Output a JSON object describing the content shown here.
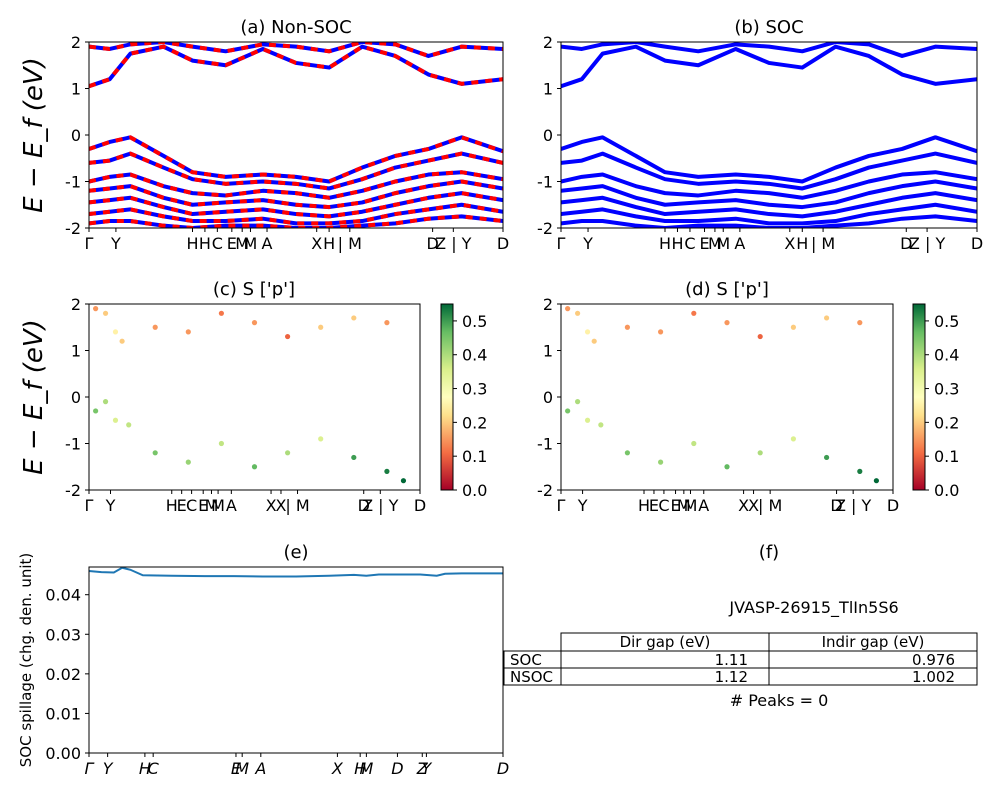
{
  "figure": {
    "material_id": "JVASP-26915_TlIn5S6",
    "colors": {
      "band_nonsoc_primary": "#0000ff",
      "band_nonsoc_dash": "#ff0000",
      "band_soc": "#0000ff",
      "spillage_line": "#1f77b4",
      "colormap_low": "#a50026",
      "colormap_mid": "#ffffbf",
      "colormap_high": "#006837"
    }
  },
  "chart_data": [
    {
      "id": "a",
      "type": "line",
      "title": "(a) Non-SOC",
      "ylabel": "E − E_f (eV)",
      "ylim": [
        -2,
        2
      ],
      "yticks": [
        -2,
        -1,
        0,
        1,
        2
      ],
      "xticklabels": [
        "Γ",
        "Y",
        "H",
        "H",
        "C",
        "E",
        "M",
        "M",
        "A",
        "X",
        "H",
        "| M",
        "D",
        "Z | Y",
        "D"
      ],
      "style": "blue line with red dashes",
      "series": [
        {
          "x": [
            0,
            0.05,
            0.1,
            0.18,
            0.25,
            0.33,
            0.42,
            0.5,
            0.58,
            0.66,
            0.74,
            0.82,
            0.9,
            1.0
          ],
          "values": [
            1.05,
            1.2,
            1.75,
            1.9,
            1.6,
            1.5,
            1.85,
            1.55,
            1.45,
            1.9,
            1.7,
            1.3,
            1.1,
            1.2
          ]
        },
        {
          "x": [
            0,
            0.05,
            0.1,
            0.18,
            0.25,
            0.33,
            0.42,
            0.5,
            0.58,
            0.66,
            0.74,
            0.82,
            0.9,
            1.0
          ],
          "values": [
            1.9,
            1.85,
            1.95,
            2.0,
            1.9,
            1.8,
            1.95,
            1.9,
            1.8,
            2.0,
            1.95,
            1.7,
            1.9,
            1.85
          ]
        },
        {
          "x": [
            0,
            0.05,
            0.1,
            0.18,
            0.25,
            0.33,
            0.42,
            0.5,
            0.58,
            0.66,
            0.74,
            0.82,
            0.9,
            1.0
          ],
          "values": [
            -0.3,
            -0.15,
            -0.05,
            -0.45,
            -0.8,
            -0.9,
            -0.85,
            -0.9,
            -1.0,
            -0.7,
            -0.45,
            -0.3,
            -0.05,
            -0.35
          ]
        },
        {
          "x": [
            0,
            0.05,
            0.1,
            0.18,
            0.25,
            0.33,
            0.42,
            0.5,
            0.58,
            0.66,
            0.74,
            0.82,
            0.9,
            1.0
          ],
          "values": [
            -0.6,
            -0.55,
            -0.4,
            -0.7,
            -0.95,
            -1.05,
            -1.0,
            -1.05,
            -1.15,
            -0.95,
            -0.7,
            -0.55,
            -0.4,
            -0.6
          ]
        },
        {
          "x": [
            0,
            0.05,
            0.1,
            0.18,
            0.25,
            0.33,
            0.42,
            0.5,
            0.58,
            0.66,
            0.74,
            0.82,
            0.9,
            1.0
          ],
          "values": [
            -1.0,
            -0.9,
            -0.85,
            -1.1,
            -1.25,
            -1.3,
            -1.2,
            -1.25,
            -1.35,
            -1.2,
            -1.0,
            -0.85,
            -0.8,
            -0.95
          ]
        },
        {
          "x": [
            0,
            0.05,
            0.1,
            0.18,
            0.25,
            0.33,
            0.42,
            0.5,
            0.58,
            0.66,
            0.74,
            0.82,
            0.9,
            1.0
          ],
          "values": [
            -1.2,
            -1.15,
            -1.1,
            -1.35,
            -1.5,
            -1.45,
            -1.4,
            -1.5,
            -1.55,
            -1.45,
            -1.25,
            -1.1,
            -1.0,
            -1.15
          ]
        },
        {
          "x": [
            0,
            0.05,
            0.1,
            0.18,
            0.25,
            0.33,
            0.42,
            0.5,
            0.58,
            0.66,
            0.74,
            0.82,
            0.9,
            1.0
          ],
          "values": [
            -1.45,
            -1.4,
            -1.35,
            -1.55,
            -1.7,
            -1.65,
            -1.6,
            -1.7,
            -1.75,
            -1.65,
            -1.5,
            -1.35,
            -1.25,
            -1.4
          ]
        },
        {
          "x": [
            0,
            0.05,
            0.1,
            0.18,
            0.25,
            0.33,
            0.42,
            0.5,
            0.58,
            0.66,
            0.74,
            0.82,
            0.9,
            1.0
          ],
          "values": [
            -1.7,
            -1.65,
            -1.6,
            -1.75,
            -1.85,
            -1.85,
            -1.8,
            -1.9,
            -1.9,
            -1.85,
            -1.7,
            -1.6,
            -1.5,
            -1.65
          ]
        },
        {
          "x": [
            0,
            0.05,
            0.1,
            0.18,
            0.25,
            0.33,
            0.42,
            0.5,
            0.58,
            0.66,
            0.74,
            0.82,
            0.9,
            1.0
          ],
          "values": [
            -1.9,
            -1.85,
            -1.85,
            -1.95,
            -2.0,
            -1.95,
            -1.95,
            -2.0,
            -2.0,
            -1.95,
            -1.9,
            -1.8,
            -1.75,
            -1.85
          ]
        }
      ]
    },
    {
      "id": "b",
      "type": "line",
      "title": "(b) SOC",
      "ylim": [
        -2,
        2
      ],
      "yticks": [
        -2,
        -1,
        0,
        1,
        2
      ],
      "xticklabels": [
        "Γ",
        "Y",
        "H",
        "H",
        "C",
        "E",
        "M",
        "M",
        "A",
        "X",
        "H",
        "| M",
        "D",
        "Z | Y",
        "D"
      ],
      "style": "solid blue",
      "series": [
        {
          "x": [
            0,
            0.05,
            0.1,
            0.18,
            0.25,
            0.33,
            0.42,
            0.5,
            0.58,
            0.66,
            0.74,
            0.82,
            0.9,
            1.0
          ],
          "values": [
            1.05,
            1.2,
            1.75,
            1.9,
            1.6,
            1.5,
            1.85,
            1.55,
            1.45,
            1.9,
            1.7,
            1.3,
            1.1,
            1.2
          ]
        },
        {
          "x": [
            0,
            0.05,
            0.1,
            0.18,
            0.25,
            0.33,
            0.42,
            0.5,
            0.58,
            0.66,
            0.74,
            0.82,
            0.9,
            1.0
          ],
          "values": [
            1.9,
            1.85,
            1.95,
            2.0,
            1.9,
            1.8,
            1.95,
            1.9,
            1.8,
            2.0,
            1.95,
            1.7,
            1.9,
            1.85
          ]
        },
        {
          "x": [
            0,
            0.05,
            0.1,
            0.18,
            0.25,
            0.33,
            0.42,
            0.5,
            0.58,
            0.66,
            0.74,
            0.82,
            0.9,
            1.0
          ],
          "values": [
            -0.3,
            -0.15,
            -0.05,
            -0.45,
            -0.8,
            -0.9,
            -0.85,
            -0.9,
            -1.0,
            -0.7,
            -0.45,
            -0.3,
            -0.05,
            -0.35
          ]
        },
        {
          "x": [
            0,
            0.05,
            0.1,
            0.18,
            0.25,
            0.33,
            0.42,
            0.5,
            0.58,
            0.66,
            0.74,
            0.82,
            0.9,
            1.0
          ],
          "values": [
            -0.6,
            -0.55,
            -0.4,
            -0.7,
            -0.95,
            -1.05,
            -1.0,
            -1.05,
            -1.15,
            -0.95,
            -0.7,
            -0.55,
            -0.4,
            -0.6
          ]
        },
        {
          "x": [
            0,
            0.05,
            0.1,
            0.18,
            0.25,
            0.33,
            0.42,
            0.5,
            0.58,
            0.66,
            0.74,
            0.82,
            0.9,
            1.0
          ],
          "values": [
            -1.0,
            -0.9,
            -0.85,
            -1.1,
            -1.25,
            -1.3,
            -1.2,
            -1.25,
            -1.35,
            -1.2,
            -1.0,
            -0.85,
            -0.8,
            -0.95
          ]
        },
        {
          "x": [
            0,
            0.05,
            0.1,
            0.18,
            0.25,
            0.33,
            0.42,
            0.5,
            0.58,
            0.66,
            0.74,
            0.82,
            0.9,
            1.0
          ],
          "values": [
            -1.2,
            -1.15,
            -1.1,
            -1.35,
            -1.5,
            -1.45,
            -1.4,
            -1.5,
            -1.55,
            -1.45,
            -1.25,
            -1.1,
            -1.0,
            -1.15
          ]
        },
        {
          "x": [
            0,
            0.05,
            0.1,
            0.18,
            0.25,
            0.33,
            0.42,
            0.5,
            0.58,
            0.66,
            0.74,
            0.82,
            0.9,
            1.0
          ],
          "values": [
            -1.45,
            -1.4,
            -1.35,
            -1.55,
            -1.7,
            -1.65,
            -1.6,
            -1.7,
            -1.75,
            -1.65,
            -1.5,
            -1.35,
            -1.25,
            -1.4
          ]
        },
        {
          "x": [
            0,
            0.05,
            0.1,
            0.18,
            0.25,
            0.33,
            0.42,
            0.5,
            0.58,
            0.66,
            0.74,
            0.82,
            0.9,
            1.0
          ],
          "values": [
            -1.7,
            -1.65,
            -1.6,
            -1.75,
            -1.85,
            -1.85,
            -1.8,
            -1.9,
            -1.9,
            -1.85,
            -1.7,
            -1.6,
            -1.5,
            -1.65
          ]
        },
        {
          "x": [
            0,
            0.05,
            0.1,
            0.18,
            0.25,
            0.33,
            0.42,
            0.5,
            0.58,
            0.66,
            0.74,
            0.82,
            0.9,
            1.0
          ],
          "values": [
            -1.9,
            -1.85,
            -1.85,
            -1.95,
            -2.0,
            -1.95,
            -1.95,
            -2.0,
            -2.0,
            -1.95,
            -1.9,
            -1.8,
            -1.75,
            -1.85
          ]
        }
      ]
    },
    {
      "id": "c",
      "type": "scatter",
      "title": "(c)  S ['p']",
      "ylabel": "E − E_f (eV)",
      "ylim": [
        -2,
        2
      ],
      "yticks": [
        -2,
        -1,
        0,
        1,
        2
      ],
      "xticklabels": [
        "Γ",
        "Y",
        "H",
        "E",
        "C",
        "E",
        "M",
        "M",
        "A",
        "X",
        "X",
        "| M",
        "D",
        "Z | Y",
        "D"
      ],
      "colorbar": {
        "range": [
          0.0,
          0.55
        ],
        "ticks": [
          "0.0",
          "0.1",
          "0.2",
          "0.3",
          "0.4",
          "0.5"
        ],
        "colormap": "RdYlGn"
      },
      "points": [
        {
          "x": 0.02,
          "y": 1.9,
          "v": 0.15
        },
        {
          "x": 0.05,
          "y": 1.8,
          "v": 0.2
        },
        {
          "x": 0.08,
          "y": 1.4,
          "v": 0.25
        },
        {
          "x": 0.1,
          "y": 1.2,
          "v": 0.2
        },
        {
          "x": 0.2,
          "y": 1.5,
          "v": 0.15
        },
        {
          "x": 0.3,
          "y": 1.4,
          "v": 0.15
        },
        {
          "x": 0.4,
          "y": 1.8,
          "v": 0.12
        },
        {
          "x": 0.5,
          "y": 1.6,
          "v": 0.15
        },
        {
          "x": 0.6,
          "y": 1.3,
          "v": 0.1
        },
        {
          "x": 0.7,
          "y": 1.5,
          "v": 0.2
        },
        {
          "x": 0.8,
          "y": 1.7,
          "v": 0.2
        },
        {
          "x": 0.9,
          "y": 1.6,
          "v": 0.15
        },
        {
          "x": 0.02,
          "y": -0.3,
          "v": 0.45
        },
        {
          "x": 0.05,
          "y": -0.1,
          "v": 0.4
        },
        {
          "x": 0.08,
          "y": -0.5,
          "v": 0.35
        },
        {
          "x": 0.12,
          "y": -0.6,
          "v": 0.38
        },
        {
          "x": 0.2,
          "y": -1.2,
          "v": 0.45
        },
        {
          "x": 0.3,
          "y": -1.4,
          "v": 0.42
        },
        {
          "x": 0.4,
          "y": -1.0,
          "v": 0.38
        },
        {
          "x": 0.5,
          "y": -1.5,
          "v": 0.47
        },
        {
          "x": 0.6,
          "y": -1.2,
          "v": 0.4
        },
        {
          "x": 0.7,
          "y": -0.9,
          "v": 0.35
        },
        {
          "x": 0.8,
          "y": -1.3,
          "v": 0.5
        },
        {
          "x": 0.9,
          "y": -1.6,
          "v": 0.53
        },
        {
          "x": 0.95,
          "y": -1.8,
          "v": 0.55
        }
      ]
    },
    {
      "id": "d",
      "type": "scatter",
      "title": "(d) S ['p']",
      "ylim": [
        -2,
        2
      ],
      "yticks": [
        -2,
        -1,
        0,
        1,
        2
      ],
      "xticklabels": [
        "Γ",
        "Y",
        "H",
        "E",
        "C",
        "E",
        "M",
        "M",
        "A",
        "X",
        "X",
        "| M",
        "D",
        "Z | Y",
        "D"
      ],
      "colorbar": {
        "range": [
          0.0,
          0.55
        ],
        "ticks": [
          "0.0",
          "0.1",
          "0.2",
          "0.3",
          "0.4",
          "0.5"
        ],
        "colormap": "RdYlGn"
      },
      "points": [
        {
          "x": 0.02,
          "y": 1.9,
          "v": 0.15
        },
        {
          "x": 0.05,
          "y": 1.8,
          "v": 0.2
        },
        {
          "x": 0.08,
          "y": 1.4,
          "v": 0.25
        },
        {
          "x": 0.1,
          "y": 1.2,
          "v": 0.2
        },
        {
          "x": 0.2,
          "y": 1.5,
          "v": 0.15
        },
        {
          "x": 0.3,
          "y": 1.4,
          "v": 0.15
        },
        {
          "x": 0.4,
          "y": 1.8,
          "v": 0.12
        },
        {
          "x": 0.5,
          "y": 1.6,
          "v": 0.15
        },
        {
          "x": 0.6,
          "y": 1.3,
          "v": 0.1
        },
        {
          "x": 0.7,
          "y": 1.5,
          "v": 0.2
        },
        {
          "x": 0.8,
          "y": 1.7,
          "v": 0.2
        },
        {
          "x": 0.9,
          "y": 1.6,
          "v": 0.15
        },
        {
          "x": 0.02,
          "y": -0.3,
          "v": 0.45
        },
        {
          "x": 0.05,
          "y": -0.1,
          "v": 0.4
        },
        {
          "x": 0.08,
          "y": -0.5,
          "v": 0.35
        },
        {
          "x": 0.12,
          "y": -0.6,
          "v": 0.38
        },
        {
          "x": 0.2,
          "y": -1.2,
          "v": 0.45
        },
        {
          "x": 0.3,
          "y": -1.4,
          "v": 0.42
        },
        {
          "x": 0.4,
          "y": -1.0,
          "v": 0.38
        },
        {
          "x": 0.5,
          "y": -1.5,
          "v": 0.47
        },
        {
          "x": 0.6,
          "y": -1.2,
          "v": 0.4
        },
        {
          "x": 0.7,
          "y": -0.9,
          "v": 0.35
        },
        {
          "x": 0.8,
          "y": -1.3,
          "v": 0.5
        },
        {
          "x": 0.9,
          "y": -1.6,
          "v": 0.53
        },
        {
          "x": 0.95,
          "y": -1.8,
          "v": 0.55
        }
      ]
    },
    {
      "id": "e",
      "type": "line",
      "title": "(e)",
      "ylabel": "SOC spillage (chg. den. unit)",
      "ylim": [
        0,
        0.047
      ],
      "yticks": [
        "0.00",
        "0.01",
        "0.02",
        "0.03",
        "0.04"
      ],
      "xticklabels": [
        "Γ",
        "Y",
        "H",
        "C",
        "E",
        "M",
        "A",
        "X",
        "H",
        "M",
        "D",
        "Z",
        "Y",
        "D"
      ],
      "x": [
        0.0,
        0.03,
        0.06,
        0.08,
        0.1,
        0.13,
        0.2,
        0.28,
        0.35,
        0.42,
        0.5,
        0.58,
        0.64,
        0.67,
        0.7,
        0.8,
        0.84,
        0.86,
        0.9,
        1.0
      ],
      "values": [
        0.046,
        0.0457,
        0.0456,
        0.0468,
        0.0463,
        0.0449,
        0.0448,
        0.0447,
        0.0447,
        0.0446,
        0.0446,
        0.0448,
        0.045,
        0.0448,
        0.0451,
        0.0451,
        0.0448,
        0.0453,
        0.0454,
        0.0454
      ]
    },
    {
      "id": "f",
      "type": "table",
      "title": "(f)",
      "subtitle": "JVASP-26915_TlIn5S6",
      "columns": [
        "",
        "Dir gap (eV)",
        "Indir gap (eV)"
      ],
      "rows": [
        {
          "label": "SOC",
          "dir_gap": "1.11",
          "indir_gap": "0.976"
        },
        {
          "label": "NSOC",
          "dir_gap": "1.12",
          "indir_gap": "1.002"
        }
      ],
      "footer": "# Peaks = 0"
    }
  ]
}
